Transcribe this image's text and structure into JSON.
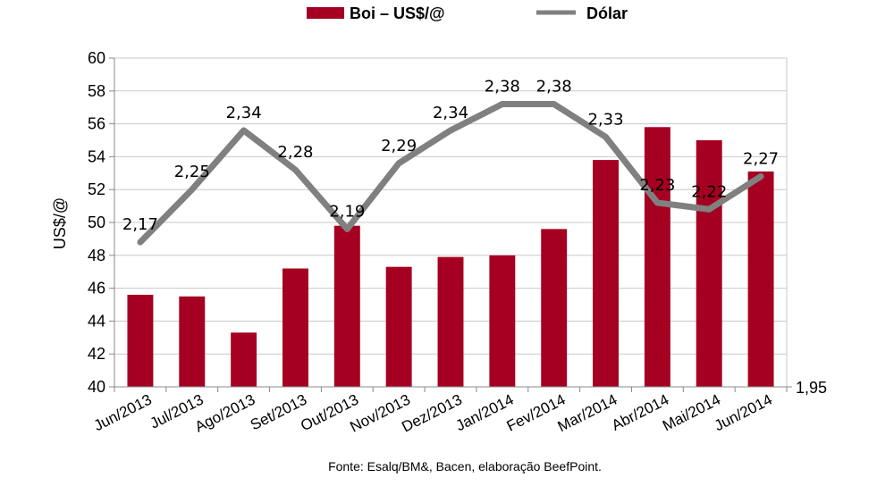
{
  "chart_data": {
    "type": "bar+line",
    "categories": [
      "Jun/2013",
      "Jul/2013",
      "Ago/2013",
      "Set/2013",
      "Out/2013",
      "Nov/2013",
      "Dez/2013",
      "Jan/2014",
      "Fev/2014",
      "Mar/2014",
      "Abr/2014",
      "Mai/2014",
      "Jun/2014"
    ],
    "series": [
      {
        "name": "Boi – US$/@",
        "kind": "bar",
        "axis": "left",
        "color": "#a50021",
        "values": [
          45.6,
          45.5,
          43.3,
          47.2,
          49.8,
          47.3,
          47.9,
          48.0,
          49.6,
          53.8,
          55.8,
          55.0,
          53.1
        ]
      },
      {
        "name": "Dólar",
        "kind": "line",
        "axis": "right",
        "color": "#808080",
        "values": [
          2.17,
          2.25,
          2.34,
          2.28,
          2.19,
          2.29,
          2.34,
          2.38,
          2.38,
          2.33,
          2.23,
          2.22,
          2.27
        ],
        "labels": [
          "2,17",
          "2,25",
          "2,34",
          "2,28",
          "2,19",
          "2,29",
          "2,34",
          "2,38",
          "2,38",
          "2,33",
          "2,23",
          "2,22",
          "2,27"
        ]
      }
    ],
    "ylabel": "US$/@",
    "ylim": [
      40,
      60
    ],
    "yticks": [
      "40",
      "42",
      "44",
      "46",
      "48",
      "50",
      "52",
      "54",
      "56",
      "58",
      "60"
    ],
    "y2lim": [
      1.95,
      2.45
    ],
    "y2ticks": [
      "1,95"
    ],
    "grid": true,
    "legend": "top-center",
    "source": "Fonte: Esalq/BM&, Bacen, elaboração BeefPoint."
  }
}
